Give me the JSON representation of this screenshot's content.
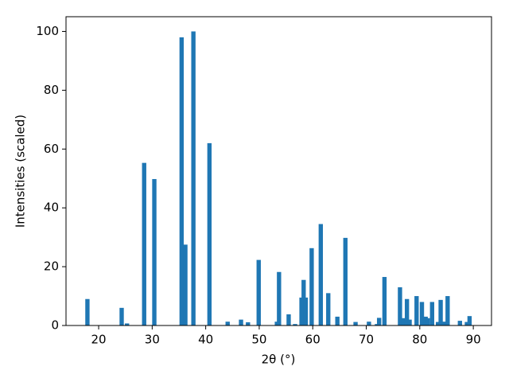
{
  "chart_data": {
    "type": "bar",
    "xlabel": "2θ (°)",
    "ylabel": "Intensities (scaled)",
    "x": [
      17.9,
      24.3,
      25.3,
      28.5,
      30.4,
      35.5,
      36.2,
      37.7,
      40.7,
      44.1,
      46.6,
      47.9,
      49.9,
      53.3,
      53.7,
      55.5,
      56.7,
      57.9,
      58.3,
      58.7,
      59.8,
      61.5,
      62.9,
      64.6,
      66.1,
      68.0,
      70.5,
      72.0,
      72.4,
      73.4,
      76.3,
      76.9,
      77.6,
      78.1,
      79.4,
      80.4,
      81.1,
      81.5,
      82.3,
      83.4,
      83.9,
      84.5,
      85.2,
      87.5,
      88.8,
      89.3
    ],
    "values": [
      9,
      6,
      0.7,
      55.3,
      49.8,
      98,
      27.5,
      100,
      62,
      1.3,
      2,
      1.1,
      22.3,
      1.3,
      18.2,
      3.8,
      0.5,
      9.5,
      15.5,
      9.5,
      26.3,
      34.5,
      11,
      3,
      29.8,
      1.2,
      1.3,
      0.5,
      2.6,
      16.5,
      13,
      2.5,
      9,
      2,
      10,
      8,
      3,
      2.5,
      8,
      1.2,
      8.7,
      1.3,
      10,
      1.6,
      1.2,
      3.2
    ],
    "color": "#1f77b4",
    "xlim": [
      13.9,
      93.4
    ],
    "ylim": [
      0,
      105
    ],
    "xticks": [
      20,
      30,
      40,
      50,
      60,
      70,
      80,
      90
    ],
    "yticks": [
      0,
      20,
      40,
      60,
      80,
      100
    ],
    "grid": false
  }
}
